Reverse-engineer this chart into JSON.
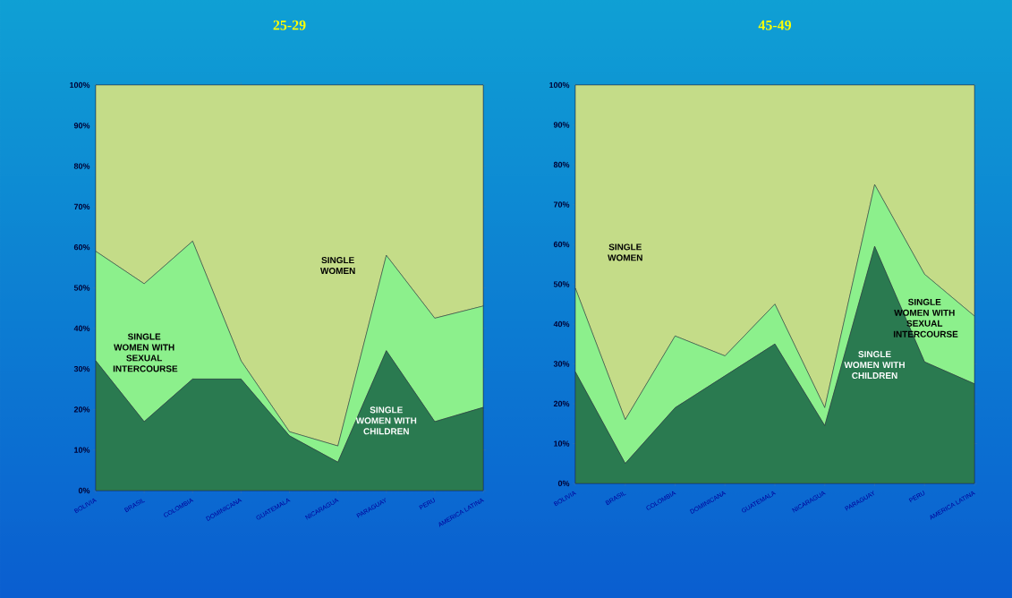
{
  "chart_data": [
    {
      "type": "area",
      "stacked": true,
      "title": "25-29",
      "categories": [
        "BOLIVIA",
        "BRASIL",
        "COLOMBIA",
        "DOMINICANA",
        "GUATEMALA",
        "NICARAGUA",
        "PARAGUAY",
        "PERU",
        "AMERICA LATINA"
      ],
      "ylim": [
        0,
        100
      ],
      "yticks": [
        {
          "value": 0,
          "label": "0%"
        },
        {
          "value": 10,
          "label": "10%"
        },
        {
          "value": 20,
          "label": "20%"
        },
        {
          "value": 30,
          "label": "30%"
        },
        {
          "value": 40,
          "label": "40%"
        },
        {
          "value": 50,
          "label": "50%"
        },
        {
          "value": 60,
          "label": "60%"
        },
        {
          "value": 70,
          "label": "70%"
        },
        {
          "value": 80,
          "label": "80%"
        },
        {
          "value": 90,
          "label": "90%"
        },
        {
          "value": 100,
          "label": "100%"
        }
      ],
      "series": [
        {
          "name": "SINGLE WOMEN WITH CHILDREN",
          "color": "#2a7a50",
          "values": [
            32,
            17,
            27.5,
            27.5,
            13.5,
            7,
            34.5,
            17,
            20.5
          ]
        },
        {
          "name": "SINGLE WOMEN WITH SEXUAL INTERCOURSE",
          "color": "#8cf08c",
          "values": [
            27,
            34,
            34,
            4.5,
            1,
            4,
            23.5,
            25.5,
            25
          ]
        },
        {
          "name": "SINGLE WOMEN",
          "color": "#c4dc88",
          "values": [
            41,
            49,
            38.5,
            68,
            85.5,
            89,
            42,
            57.5,
            54.5
          ]
        }
      ]
    },
    {
      "type": "area",
      "stacked": true,
      "title": "45-49",
      "categories": [
        "BOLIVIA",
        "BRASIL",
        "COLOMBIA",
        "DOMINICANA",
        "GUATEMALA",
        "NICARAGUA",
        "PARAGUAY",
        "PERU",
        "AMERICA LATINA"
      ],
      "ylim": [
        0,
        100
      ],
      "yticks": [
        {
          "value": 0,
          "label": "0%"
        },
        {
          "value": 10,
          "label": "10%"
        },
        {
          "value": 20,
          "label": "20%"
        },
        {
          "value": 30,
          "label": "30%"
        },
        {
          "value": 40,
          "label": "40%"
        },
        {
          "value": 50,
          "label": "50%"
        },
        {
          "value": 60,
          "label": "60%"
        },
        {
          "value": 70,
          "label": "70%"
        },
        {
          "value": 80,
          "label": "80%"
        },
        {
          "value": 90,
          "label": "90%"
        },
        {
          "value": 100,
          "label": "100%"
        }
      ],
      "series": [
        {
          "name": "SINGLE WOMEN WITH CHILDREN",
          "color": "#2a7a50",
          "values": [
            28,
            5,
            19,
            27,
            35,
            14.5,
            59.5,
            30.5,
            25
          ]
        },
        {
          "name": "SINGLE WOMEN WITH SEXUAL INTERCOURSE",
          "color": "#8cf08c",
          "values": [
            21,
            11,
            18,
            5,
            10,
            4.5,
            15.5,
            22,
            17
          ]
        },
        {
          "name": "SINGLE WOMEN",
          "color": "#c4dc88",
          "values": [
            51,
            84,
            63,
            68,
            55,
            81,
            25,
            47.5,
            58
          ]
        }
      ]
    }
  ]
}
